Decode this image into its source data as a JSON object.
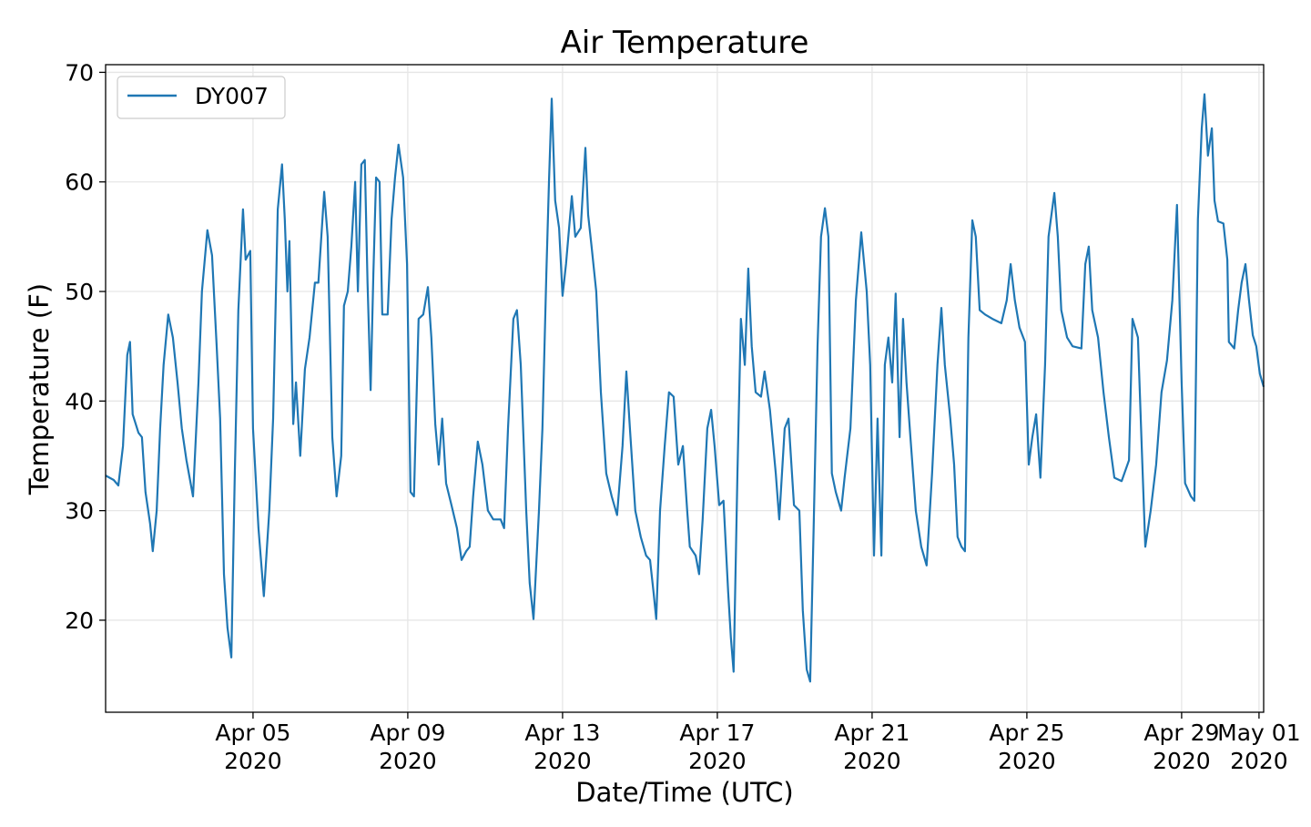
{
  "chart_data": {
    "type": "line",
    "title": "Air Temperature",
    "xlabel": "Date/Time (UTC)",
    "ylabel": "Temperature (F)",
    "x_units": "days since Apr 01 2020 00:00 UTC",
    "xlim": [
      0.19,
      30.12
    ],
    "ylim": [
      11.6,
      70.7
    ],
    "grid": true,
    "legend_placement": "top-left",
    "x_ticks": [
      {
        "value": 4,
        "label": "Apr 05",
        "sublabel": "2020"
      },
      {
        "value": 8,
        "label": "Apr 09",
        "sublabel": "2020"
      },
      {
        "value": 12,
        "label": "Apr 13",
        "sublabel": "2020"
      },
      {
        "value": 16,
        "label": "Apr 17",
        "sublabel": "2020"
      },
      {
        "value": 20,
        "label": "Apr 21",
        "sublabel": "2020"
      },
      {
        "value": 24,
        "label": "Apr 25",
        "sublabel": "2020"
      },
      {
        "value": 28,
        "label": "Apr 29",
        "sublabel": "2020"
      },
      {
        "value": 30,
        "label": "May 01",
        "sublabel": "2020"
      }
    ],
    "y_ticks": [
      {
        "value": 20,
        "label": "20"
      },
      {
        "value": 30,
        "label": "30"
      },
      {
        "value": 40,
        "label": "40"
      },
      {
        "value": 50,
        "label": "50"
      },
      {
        "value": 60,
        "label": "60"
      },
      {
        "value": 70,
        "label": "70"
      }
    ],
    "series": [
      {
        "name": "DY007",
        "color": "#1f77b4",
        "x": [
          0.19,
          0.4,
          0.52,
          0.64,
          0.75,
          0.82,
          0.89,
          1.04,
          1.13,
          1.22,
          1.34,
          1.41,
          1.51,
          1.6,
          1.69,
          1.81,
          1.93,
          2.05,
          2.16,
          2.28,
          2.45,
          2.59,
          2.68,
          2.82,
          2.94,
          3.06,
          3.15,
          3.25,
          3.34,
          3.44,
          3.53,
          3.62,
          3.74,
          3.81,
          3.93,
          4.0,
          4.14,
          4.28,
          4.42,
          4.52,
          4.64,
          4.75,
          4.82,
          4.89,
          4.94,
          5.04,
          5.11,
          5.22,
          5.34,
          5.46,
          5.6,
          5.69,
          5.84,
          5.93,
          6.05,
          6.16,
          6.28,
          6.35,
          6.45,
          6.54,
          6.64,
          6.71,
          6.8,
          6.89,
          6.96,
          7.04,
          7.11,
          7.18,
          7.27,
          7.34,
          7.48,
          7.58,
          7.67,
          7.76,
          7.88,
          7.98,
          8.07,
          8.16,
          8.28,
          8.4,
          8.52,
          8.61,
          8.71,
          8.8,
          8.89,
          8.99,
          9.13,
          9.27,
          9.39,
          9.51,
          9.6,
          9.69,
          9.81,
          9.93,
          10.07,
          10.21,
          10.4,
          10.49,
          10.59,
          10.73,
          10.82,
          10.92,
          11.06,
          11.15,
          11.25,
          11.39,
          11.48,
          11.58,
          11.65,
          11.72,
          11.81,
          11.91,
          12.0,
          12.09,
          12.24,
          12.33,
          12.47,
          12.59,
          12.66,
          12.75,
          12.87,
          12.99,
          13.13,
          13.27,
          13.41,
          13.55,
          13.65,
          13.74,
          13.88,
          14.02,
          14.16,
          14.26,
          14.35,
          14.42,
          14.52,
          14.64,
          14.75,
          14.87,
          14.99,
          15.11,
          15.22,
          15.29,
          15.44,
          15.53,
          15.62,
          15.74,
          15.84,
          15.93,
          16.05,
          16.16,
          16.28,
          16.35,
          16.42,
          16.52,
          16.61,
          16.71,
          16.8,
          16.89,
          16.99,
          17.13,
          17.22,
          17.36,
          17.51,
          17.6,
          17.74,
          17.84,
          17.98,
          18.12,
          18.21,
          18.31,
          18.4,
          18.49,
          18.59,
          18.68,
          18.78,
          18.87,
          18.96,
          19.06,
          19.2,
          19.29,
          19.44,
          19.58,
          19.72,
          19.86,
          19.95,
          20.05,
          20.14,
          20.24,
          20.33,
          20.42,
          20.52,
          20.61,
          20.71,
          20.8,
          20.89,
          20.99,
          21.13,
          21.27,
          21.41,
          21.55,
          21.69,
          21.79,
          21.88,
          22.02,
          22.12,
          22.21,
          22.31,
          22.4,
          22.49,
          22.59,
          22.68,
          22.78,
          22.92,
          23.11,
          23.34,
          23.48,
          23.58,
          23.69,
          23.81,
          23.95,
          24.05,
          24.14,
          24.24,
          24.35,
          24.47,
          24.56,
          24.71,
          24.8,
          24.89,
          25.04,
          25.18,
          25.41,
          25.51,
          25.6,
          25.69,
          25.84,
          25.98,
          26.12,
          26.26,
          26.45,
          26.64,
          26.73,
          26.87,
          26.96,
          27.06,
          27.2,
          27.34,
          27.48,
          27.62,
          27.76,
          27.88,
          28.0,
          28.09,
          28.24,
          28.33,
          28.42,
          28.52,
          28.59,
          28.68,
          28.78,
          28.85,
          28.94,
          29.08,
          29.18,
          29.22,
          29.36,
          29.46,
          29.55,
          29.65,
          29.74,
          29.84,
          29.93,
          30.02,
          30.12
        ],
        "y": [
          33.2,
          32.8,
          32.3,
          35.9,
          44.2,
          45.4,
          38.8,
          37.1,
          36.7,
          31.7,
          28.8,
          26.3,
          30.0,
          37.5,
          43.3,
          47.9,
          45.8,
          41.7,
          37.5,
          34.6,
          31.3,
          41.7,
          50.0,
          55.6,
          53.3,
          45.0,
          38.4,
          24.2,
          19.3,
          16.6,
          33.4,
          48.3,
          57.5,
          52.9,
          53.7,
          37.5,
          28.4,
          22.2,
          30.0,
          38.4,
          57.5,
          61.6,
          56.6,
          50.0,
          54.6,
          37.9,
          41.7,
          35.0,
          42.9,
          45.8,
          50.8,
          50.8,
          59.1,
          55.0,
          36.7,
          31.3,
          35.0,
          48.7,
          50.0,
          54.1,
          60.0,
          50.0,
          61.6,
          62.0,
          50.8,
          41.0,
          51.6,
          60.4,
          60.0,
          47.9,
          47.9,
          56.6,
          60.4,
          63.4,
          60.4,
          52.5,
          31.7,
          31.3,
          47.5,
          47.9,
          50.4,
          45.8,
          37.9,
          34.2,
          38.4,
          32.5,
          30.5,
          28.4,
          25.5,
          26.3,
          26.7,
          31.3,
          36.3,
          34.2,
          30.0,
          29.2,
          29.2,
          28.4,
          37.5,
          47.5,
          48.3,
          43.3,
          30.0,
          23.4,
          20.1,
          30.0,
          37.5,
          51.6,
          60.0,
          67.6,
          58.3,
          55.8,
          49.6,
          52.5,
          58.7,
          55.0,
          55.8,
          63.1,
          57.0,
          54.1,
          50.0,
          40.8,
          33.4,
          31.3,
          29.6,
          35.9,
          42.7,
          37.5,
          30.0,
          27.6,
          25.9,
          25.5,
          22.6,
          20.1,
          30.0,
          35.9,
          40.8,
          40.4,
          34.2,
          35.9,
          30.0,
          26.7,
          25.9,
          24.2,
          29.2,
          37.5,
          39.2,
          35.9,
          30.5,
          30.9,
          22.6,
          18.4,
          15.3,
          33.4,
          47.5,
          43.3,
          52.1,
          45.0,
          40.8,
          40.4,
          42.7,
          39.2,
          33.4,
          29.2,
          37.5,
          38.4,
          30.5,
          30.0,
          20.9,
          15.5,
          14.4,
          28.4,
          45.0,
          55.0,
          57.6,
          55.0,
          33.4,
          31.7,
          30.0,
          33.0,
          37.5,
          49.2,
          55.4,
          50.0,
          43.3,
          25.9,
          38.4,
          25.9,
          43.3,
          45.8,
          41.7,
          49.8,
          36.7,
          47.5,
          41.7,
          36.7,
          30.0,
          26.7,
          25.0,
          33.4,
          43.3,
          48.5,
          43.3,
          38.4,
          34.2,
          27.6,
          26.7,
          26.3,
          45.8,
          56.5,
          55.0,
          48.3,
          47.9,
          47.5,
          47.1,
          49.2,
          52.5,
          49.2,
          46.7,
          45.4,
          34.2,
          36.7,
          38.8,
          33.0,
          43.3,
          55.0,
          59.0,
          55.0,
          48.3,
          45.8,
          45.0,
          44.8,
          52.5,
          54.1,
          48.3,
          45.8,
          40.8,
          36.7,
          33.0,
          32.7,
          34.6,
          47.5,
          45.8,
          36.7,
          26.7,
          30.0,
          34.2,
          40.8,
          43.7,
          49.2,
          57.9,
          41.7,
          32.5,
          31.3,
          30.9,
          56.6,
          64.9,
          68.0,
          62.4,
          64.9,
          58.3,
          56.4,
          56.2,
          52.9,
          45.4,
          44.8,
          48.3,
          50.8,
          52.5,
          49.2,
          46.0,
          45.0,
          42.5,
          41.3
        ]
      }
    ]
  }
}
